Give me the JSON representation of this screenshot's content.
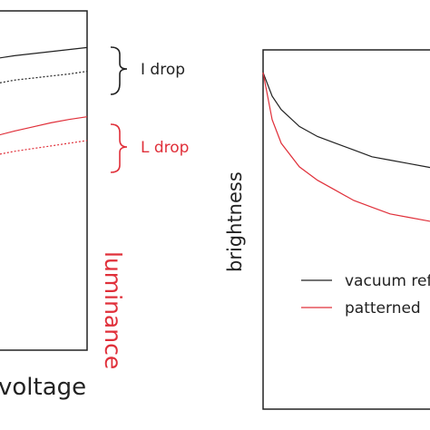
{
  "chart_data": [
    {
      "type": "line",
      "title": "",
      "xlabel": "voltage",
      "ylabel": "",
      "ylabel_right": "luminance",
      "x": [
        0,
        1,
        2,
        3,
        4,
        5
      ],
      "series": [
        {
          "color": "#222222",
          "dashed": false,
          "values": [
            8.6,
            8.68,
            8.74,
            8.8,
            8.86,
            8.92
          ]
        },
        {
          "color": "#222222",
          "dashed": true,
          "values": [
            7.86,
            7.96,
            8.02,
            8.08,
            8.14,
            8.22
          ]
        },
        {
          "color": "#e0303a",
          "dashed": false,
          "values": [
            6.32,
            6.46,
            6.58,
            6.7,
            6.8,
            6.88
          ]
        },
        {
          "color": "#e0303a",
          "dashed": true,
          "values": [
            5.76,
            5.86,
            5.94,
            6.02,
            6.1,
            6.18
          ]
        }
      ],
      "annotations": [
        {
          "text": "I drop",
          "color": "#222222"
        },
        {
          "text": "L drop",
          "color": "#e0303a"
        }
      ]
    },
    {
      "type": "line",
      "title": "",
      "xlabel": "",
      "ylabel": "brightness",
      "x": [
        0,
        0.05,
        0.1,
        0.2,
        0.3,
        0.4,
        0.5,
        0.6,
        0.7,
        0.8,
        0.9,
        1
      ],
      "series": [
        {
          "name": "vacuum ref",
          "color": "#222222",
          "values": [
            1.0,
            0.93,
            0.89,
            0.84,
            0.81,
            0.79,
            0.77,
            0.75,
            0.74,
            0.73,
            0.72,
            0.71
          ]
        },
        {
          "name": "patterned",
          "color": "#e0303a",
          "values": [
            1.0,
            0.86,
            0.79,
            0.72,
            0.68,
            0.65,
            0.62,
            0.6,
            0.58,
            0.57,
            0.56,
            0.55
          ]
        }
      ],
      "legend": "center-right"
    }
  ]
}
